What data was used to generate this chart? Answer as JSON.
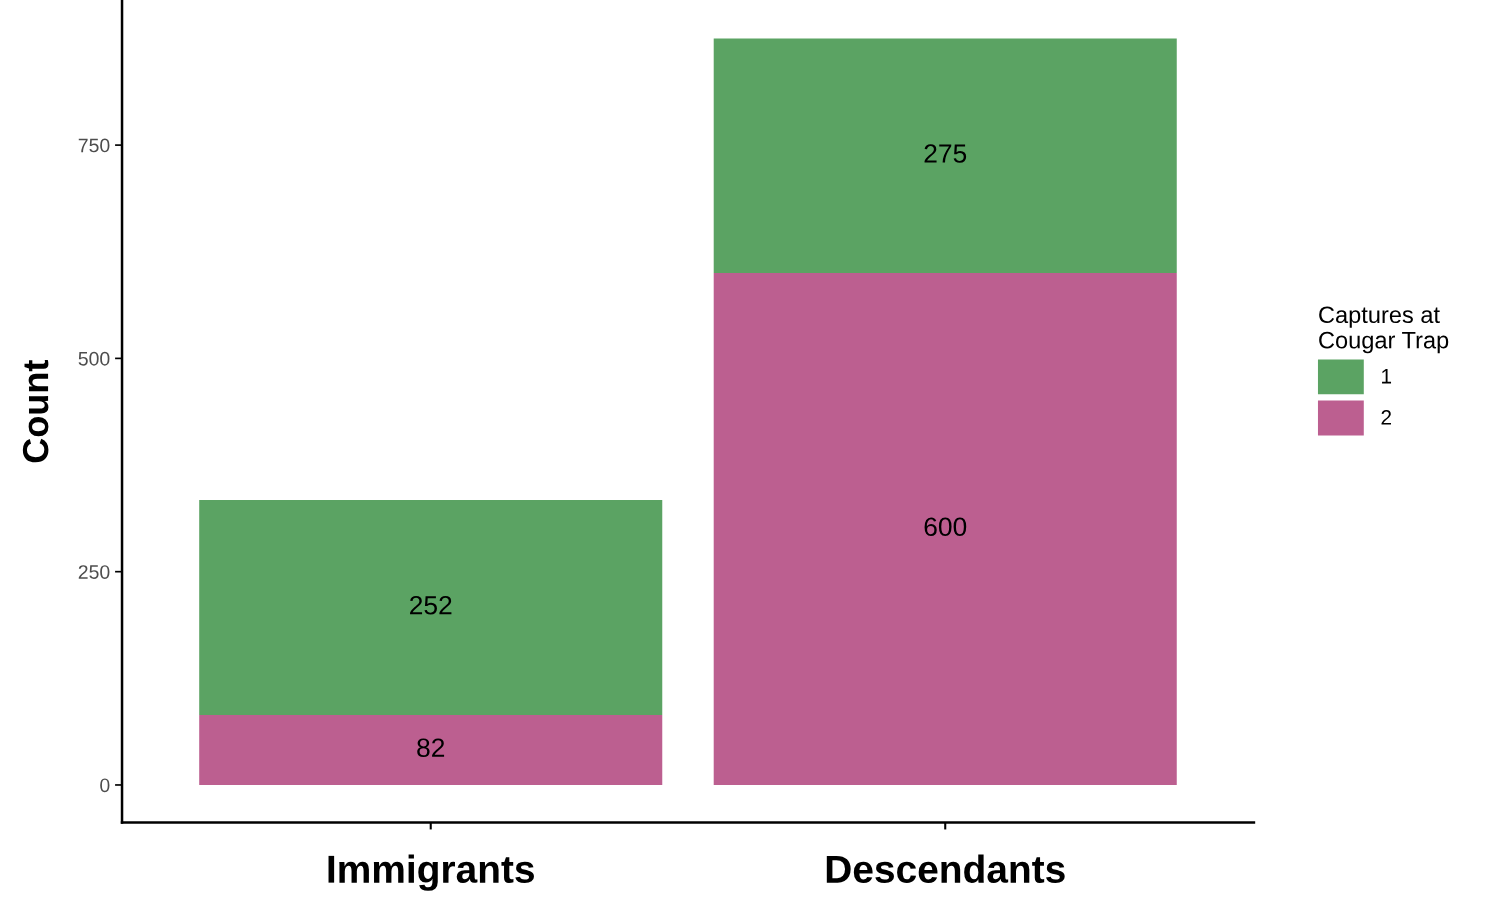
{
  "chart_data": {
    "type": "bar",
    "stacked": true,
    "ylabel": "Count",
    "legend_title": "Captures at\nCougar Trap",
    "legend": "right",
    "categories": [
      "Immigrants",
      "Descendants"
    ],
    "series": [
      {
        "name": "2",
        "color": "#bc5f90",
        "values": [
          82,
          600
        ]
      },
      {
        "name": "1",
        "color": "#5ba363",
        "values": [
          252,
          275
        ]
      }
    ],
    "ylim": [
      -44,
      919
    ],
    "yticks": [
      0,
      250,
      500,
      750
    ],
    "grid": false,
    "data_labels": true
  }
}
